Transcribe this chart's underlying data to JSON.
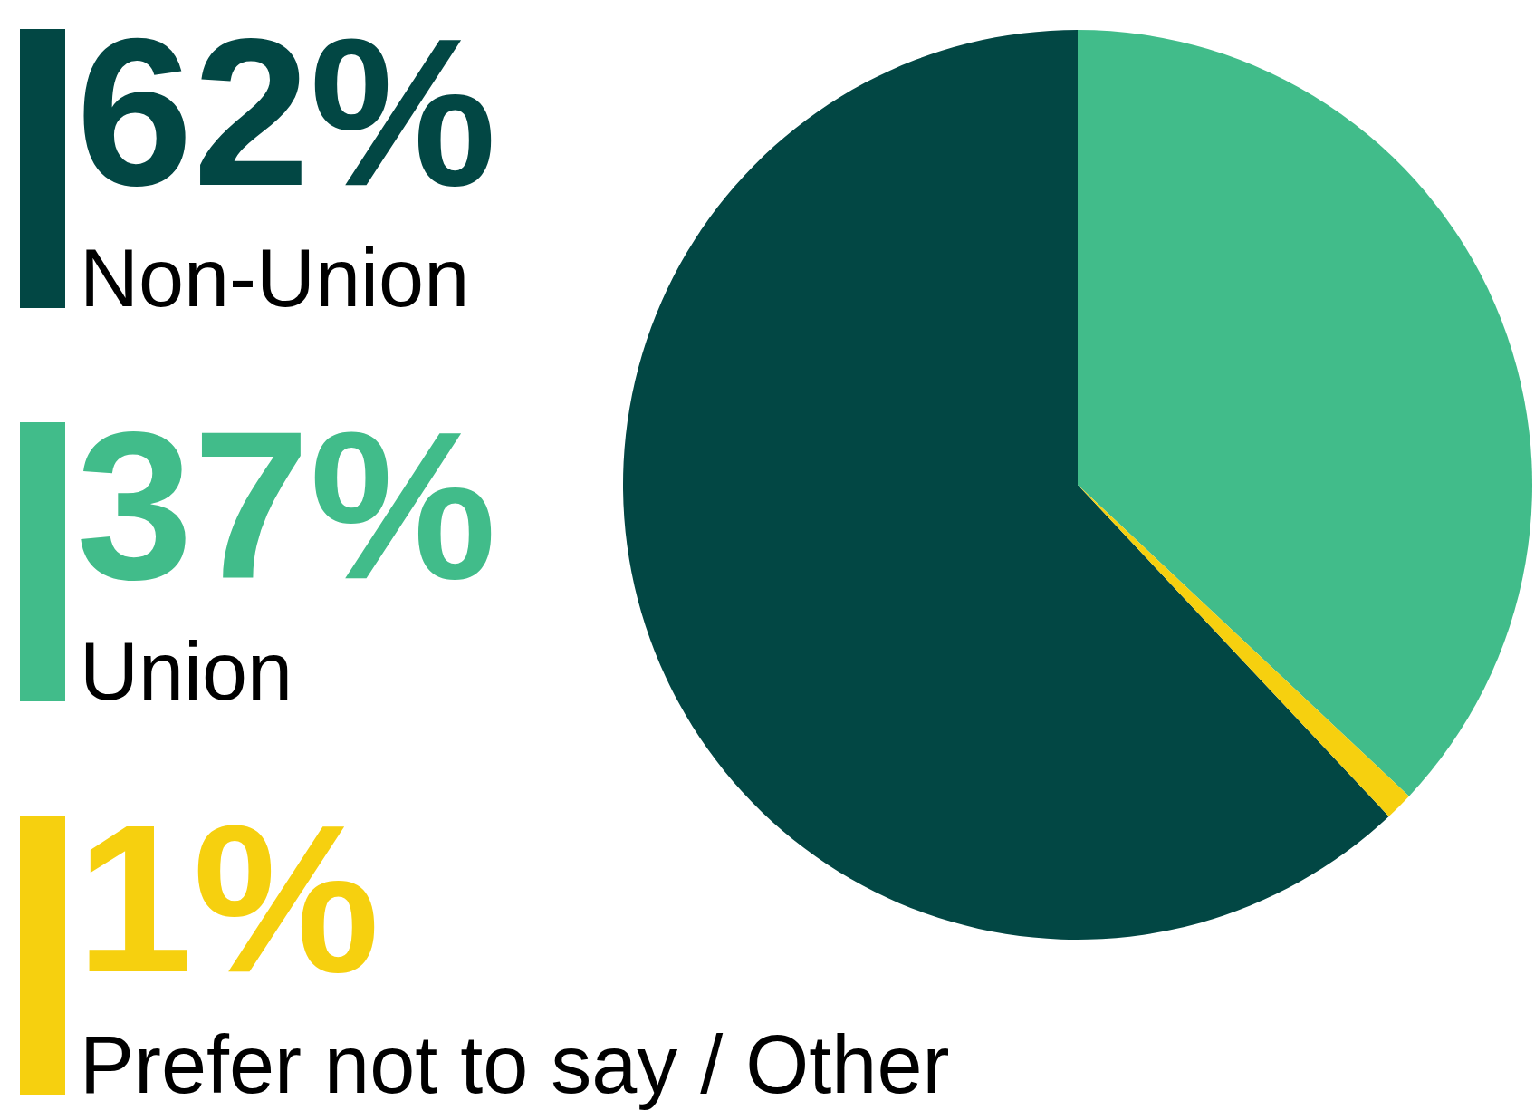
{
  "chart_data": {
    "type": "pie",
    "categories": [
      "Non-Union",
      "Union",
      "Prefer not to say / Other"
    ],
    "values": [
      62,
      37,
      1
    ],
    "colors": [
      "#024744",
      "#41bc8a",
      "#f6d00f"
    ],
    "value_labels": [
      "62%",
      "37%",
      "1%"
    ],
    "legend": "left"
  }
}
